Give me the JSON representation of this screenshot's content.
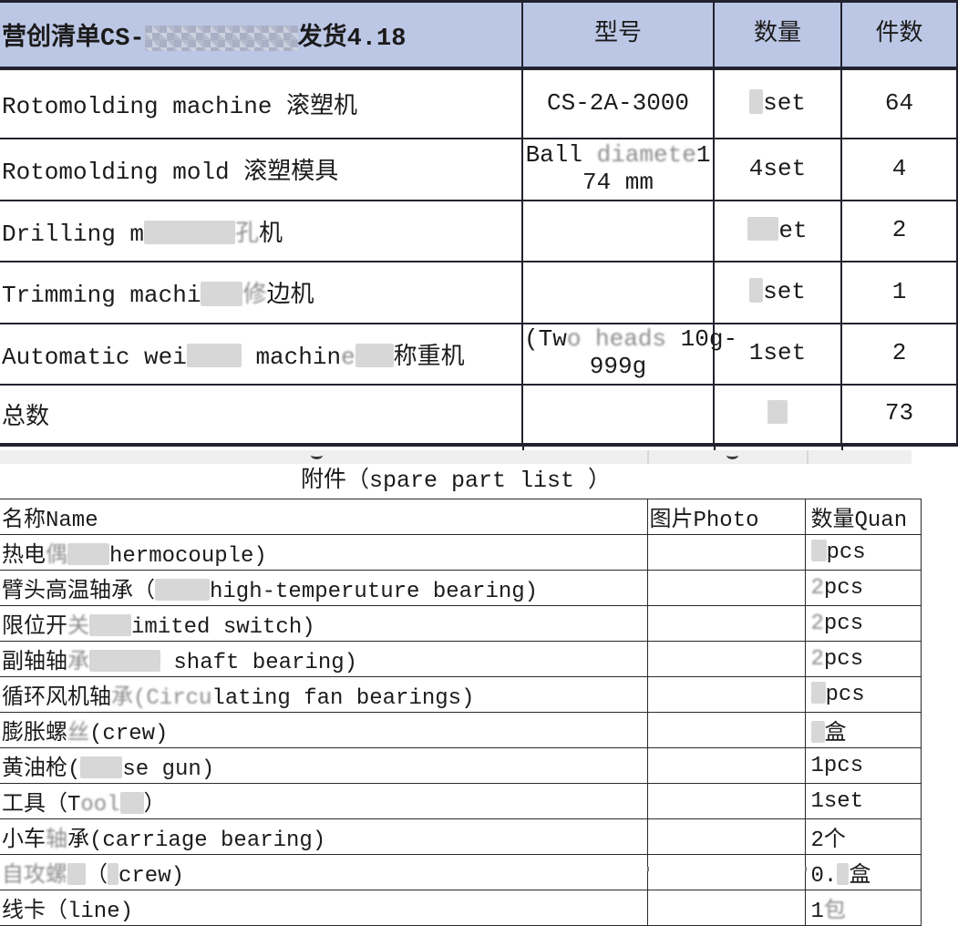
{
  "colors": {
    "header_bg": "#bcc7e5",
    "border_dark": "#23232f",
    "redaction_gray": "#d7d7d7",
    "band_bg": "#efefef"
  },
  "shipping_table": {
    "title_segments": [
      "营创清单CS-",
      {
        "m": 168
      },
      "发货4.18"
    ],
    "headers": {
      "model": "型号",
      "quantity": "数量",
      "pieces": "件数"
    },
    "rows": [
      {
        "name": [
          "Rotomolding machine 滚塑机"
        ],
        "model": [
          "CS-2A-3000"
        ],
        "qty": [
          {
            "r": 15
          },
          "set"
        ],
        "pieces": "64"
      },
      {
        "name": [
          "Rotomolding mold 滚塑模具"
        ],
        "model": [
          "Ball ",
          {
            "f": "diamete"
          },
          "1",
          {
            "br": 1
          },
          "74 mm"
        ],
        "qty": [
          "4set"
        ],
        "pieces": "4"
      },
      {
        "name": [
          "Drilling m",
          {
            "r": 100
          },
          {
            "f": "孔"
          },
          "机"
        ],
        "model": [],
        "qty": [
          {
            "r": 34
          },
          "et"
        ],
        "pieces": "2"
      },
      {
        "name": [
          "Trimming machi",
          {
            "r": 46
          },
          {
            "f": "修"
          },
          "边机"
        ],
        "model": [],
        "qty": [
          {
            "r": 15
          },
          "set"
        ],
        "pieces": "1"
      },
      {
        "name": [
          "Automatic wei",
          {
            "r": 60
          },
          " machin",
          {
            "f": "e"
          },
          {
            "r": 42
          },
          "称重机"
        ],
        "model": [
          "(Tw",
          {
            "f": "o heads"
          },
          " 10g-",
          {
            "br": 1
          },
          "999g"
        ],
        "qty": [
          "1set"
        ],
        "pieces": "2"
      },
      {
        "name": [
          "总数"
        ],
        "model": [],
        "qty": [
          {
            "r": 22
          }
        ],
        "pieces": "73"
      }
    ]
  },
  "spare_table": {
    "section_title": "附件（spare part list ）",
    "headers": {
      "name": "名称Name",
      "photo": "图片Photo",
      "quantity": "数量Quan"
    },
    "rows": [
      {
        "name": [
          "热电",
          {
            "f": "偶"
          },
          {
            "r": 46
          },
          "hermocouple)"
        ],
        "qty": [
          {
            "r": 17
          },
          "pcs"
        ]
      },
      {
        "name": [
          "臂头高温轴承（",
          {
            "r": 60
          },
          "high-temperuture bearing)"
        ],
        "qty": [
          {
            "f": "2"
          },
          "pcs"
        ]
      },
      {
        "name": [
          "限位开",
          {
            "f": "关"
          },
          {
            "r": 46
          },
          "imited switch)"
        ],
        "qty": [
          {
            "f": "2"
          },
          "pcs"
        ]
      },
      {
        "name": [
          "副轴轴",
          {
            "f": "承"
          },
          {
            "r": 78
          },
          " shaft bearing)"
        ],
        "qty": [
          {
            "f": "2"
          },
          "pcs"
        ]
      },
      {
        "name": [
          "循环风机轴",
          {
            "f": "承(Circu"
          },
          "lating fan bearings)"
        ],
        "qty": [
          {
            "r": 16
          },
          "pcs"
        ]
      },
      {
        "name": [
          "膨胀螺",
          {
            "f": "丝"
          },
          "(crew)"
        ],
        "qty": [
          {
            "r": 15
          },
          "盒"
        ]
      },
      {
        "name": [
          "黄油枪(",
          {
            "r": 46
          },
          "se gun)"
        ],
        "qty": [
          "1pcs"
        ]
      },
      {
        "name": [
          "工具（T",
          {
            "f": "ool"
          },
          {
            "r": 26
          },
          "）"
        ],
        "qty": [
          "1set"
        ]
      },
      {
        "name": [
          "小车",
          {
            "f": "轴"
          },
          "承(carriage bearing)"
        ],
        "qty": [
          "2个"
        ]
      },
      {
        "name": [
          {
            "f": "自攻螺"
          },
          {
            "r": 20
          },
          "（",
          {
            "r": 12
          },
          "crew)"
        ],
        "qty": [
          "0.",
          {
            "r": 13
          },
          "盒"
        ]
      },
      {
        "name": [
          "线卡（line)"
        ],
        "qty": [
          "1",
          {
            "f": "包"
          }
        ]
      }
    ]
  }
}
